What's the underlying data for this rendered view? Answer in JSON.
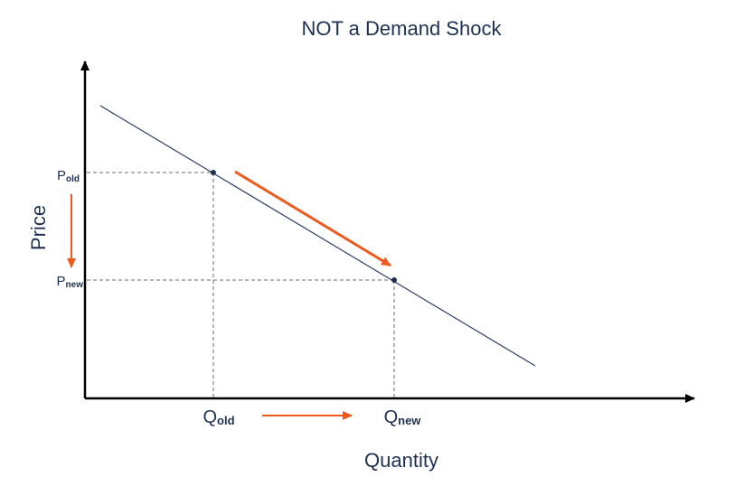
{
  "title": "NOT a Demand Shock",
  "axes": {
    "x_label": "Quantity",
    "y_label": "Price"
  },
  "labels": {
    "p_old": {
      "base": "P",
      "sub": "old"
    },
    "p_new": {
      "base": "P",
      "sub": "new"
    },
    "q_old": {
      "base": "Q",
      "sub": "old"
    },
    "q_new": {
      "base": "Q",
      "sub": "new"
    }
  },
  "colors": {
    "text": "#1f3153",
    "curve": "#2c3e66",
    "axis": "#000000",
    "guide": "#6b6b6b",
    "arrow": "#ee5a1e"
  }
}
